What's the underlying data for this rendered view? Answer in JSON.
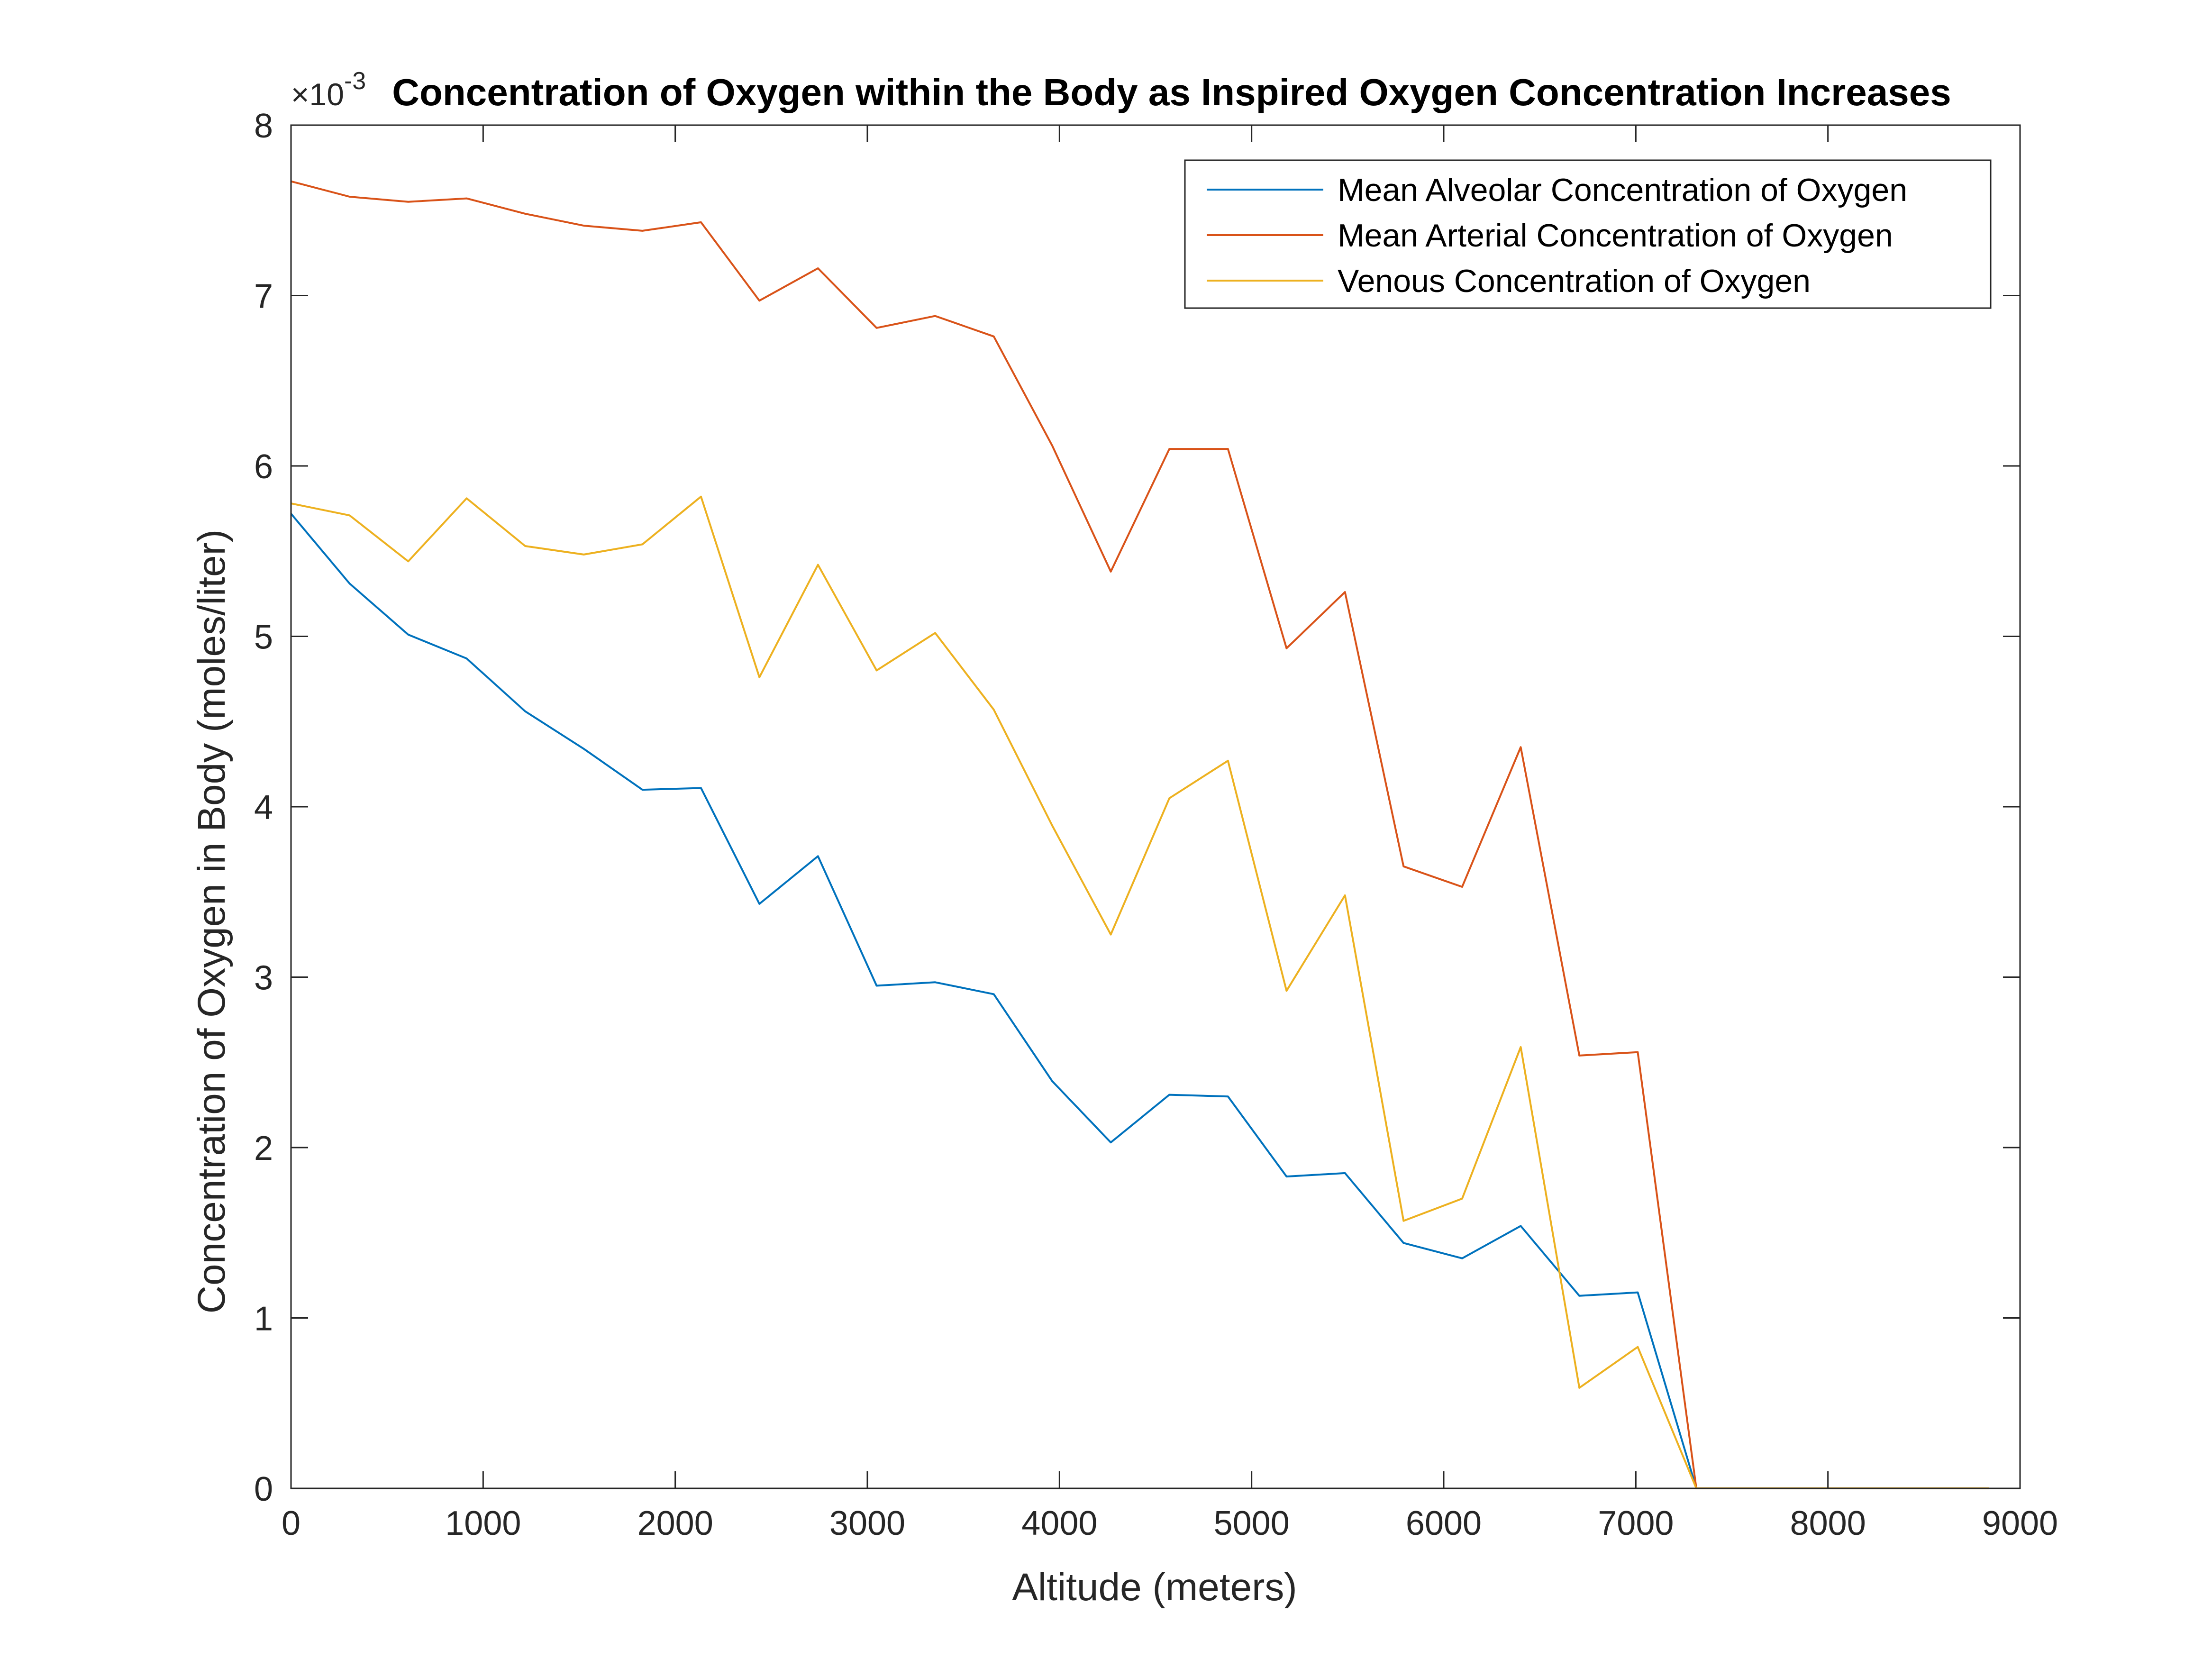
{
  "chart_data": {
    "type": "line",
    "title": "Concentration of Oxygen within the Body as Inspired Oxygen Concentration Increases",
    "xlabel": "Altitude (meters)",
    "ylabel": "Concentration of Oxygen in Body (moles/liter)",
    "y_exponent_base": "×10",
    "y_exponent_power": "-3",
    "xlim": [
      0,
      9000
    ],
    "ylim": [
      0,
      8
    ],
    "xticks": [
      0,
      1000,
      2000,
      3000,
      4000,
      5000,
      6000,
      7000,
      8000,
      9000
    ],
    "yticks": [
      0,
      1,
      2,
      3,
      4,
      5,
      6,
      7,
      8
    ],
    "xtick_labels": [
      "0",
      "1000",
      "2000",
      "3000",
      "4000",
      "5000",
      "6000",
      "7000",
      "8000",
      "9000"
    ],
    "ytick_labels": [
      "0",
      "1",
      "2",
      "3",
      "4",
      "5",
      "6",
      "7",
      "8"
    ],
    "grid": false,
    "legend_position": "top-right",
    "x": [
      0,
      305,
      610,
      914,
      1219,
      1524,
      1829,
      2134,
      2438,
      2743,
      3048,
      3353,
      3658,
      3962,
      4267,
      4572,
      4877,
      5182,
      5486,
      5791,
      6096,
      6401,
      6706,
      7010,
      7315,
      7620,
      7925,
      8230,
      8534,
      8839
    ],
    "series": [
      {
        "name": "Mean Alveolar Concentration of Oxygen",
        "color": "#0072BD",
        "values": [
          5.72,
          5.31,
          5.01,
          4.87,
          4.56,
          4.34,
          4.1,
          4.11,
          3.43,
          3.71,
          2.95,
          2.97,
          2.9,
          2.39,
          2.03,
          2.31,
          2.3,
          1.83,
          1.85,
          1.44,
          1.35,
          1.54,
          1.13,
          1.15,
          0,
          0,
          0,
          0,
          0,
          0
        ]
      },
      {
        "name": "Mean Arterial Concentration of Oxygen",
        "color": "#D95319",
        "values": [
          7.67,
          7.58,
          7.55,
          7.57,
          7.48,
          7.41,
          7.38,
          7.43,
          6.97,
          7.16,
          6.81,
          6.88,
          6.76,
          6.12,
          5.38,
          6.1,
          6.1,
          4.93,
          5.26,
          3.65,
          3.53,
          4.35,
          2.54,
          2.56,
          0,
          0,
          0,
          0,
          0,
          0
        ]
      },
      {
        "name": "Venous Concentration of Oxygen",
        "color": "#EDB120",
        "values": [
          5.78,
          5.71,
          5.44,
          5.81,
          5.53,
          5.48,
          5.54,
          5.82,
          4.76,
          5.42,
          4.8,
          5.02,
          4.57,
          3.89,
          3.25,
          4.05,
          4.27,
          2.92,
          3.48,
          1.57,
          1.7,
          2.59,
          0.59,
          0.83,
          0,
          0,
          0,
          0,
          0,
          0
        ]
      }
    ]
  }
}
